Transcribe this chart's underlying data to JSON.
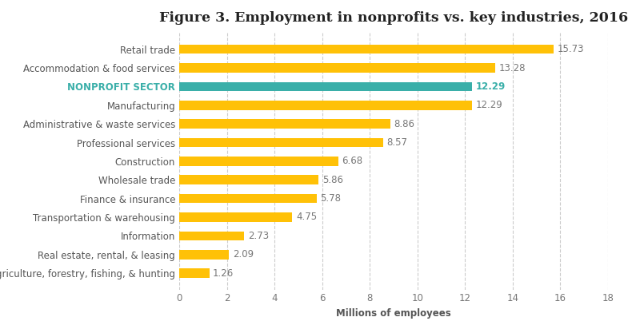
{
  "title": "Figure 3. Employment in nonprofits vs. key industries, 2016",
  "xlabel": "Millions of employees",
  "categories": [
    "Agriculture, forestry, fishing, & hunting",
    "Real estate, rental, & leasing",
    "Information",
    "Transportation & warehousing",
    "Finance & insurance",
    "Wholesale trade",
    "Construction",
    "Professional services",
    "Administrative & waste services",
    "Manufacturing",
    "NONPROFIT SECTOR",
    "Accommodation & food services",
    "Retail trade"
  ],
  "values": [
    1.26,
    2.09,
    2.73,
    4.75,
    5.78,
    5.86,
    6.68,
    8.57,
    8.86,
    12.29,
    12.29,
    13.28,
    15.73
  ],
  "colors": [
    "#FFC107",
    "#FFC107",
    "#FFC107",
    "#FFC107",
    "#FFC107",
    "#FFC107",
    "#FFC107",
    "#FFC107",
    "#FFC107",
    "#FFC107",
    "#3AAFA9",
    "#FFC107",
    "#FFC107"
  ],
  "nonprofit_index": 10,
  "nonprofit_label_color": "#3AAFA9",
  "value_label_color_default": "#777777",
  "value_label_color_nonprofit": "#3AAFA9",
  "xlim": [
    0,
    18
  ],
  "xticks": [
    0,
    2,
    4,
    6,
    8,
    10,
    12,
    14,
    16,
    18
  ],
  "background_color": "#FFFFFF",
  "grid_color": "#CCCCCC",
  "title_fontsize": 12.5,
  "label_fontsize": 8.5,
  "value_fontsize": 8.5,
  "bar_height": 0.5
}
